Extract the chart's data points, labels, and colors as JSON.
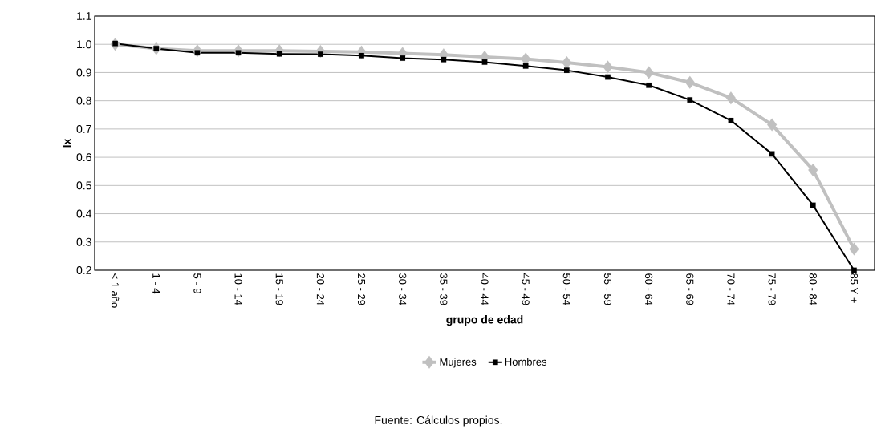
{
  "chart_data": {
    "type": "line",
    "xlabel": "grupo de edad",
    "ylabel": "lx",
    "annotations": [
      "Fuente: Cálculos propios."
    ],
    "categories": [
      "< 1 año",
      "1 - 4",
      "5 - 9",
      "10 - 14",
      "15 - 19",
      "20 - 24",
      "25 - 29",
      "30 - 34",
      "35 - 39",
      "40 - 44",
      "45 - 49",
      "50 - 54",
      "55 - 59",
      "60 - 64",
      "65 - 69",
      "70 - 74",
      "75 - 79",
      "80 - 84",
      "85 Y +"
    ],
    "series": [
      {
        "name": "Mujeres",
        "color": "#c0c0c0",
        "marker": "diamond",
        "values": [
          1.0,
          0.985,
          0.977,
          0.977,
          0.977,
          0.975,
          0.973,
          0.968,
          0.963,
          0.955,
          0.948,
          0.935,
          0.92,
          0.9,
          0.865,
          0.81,
          0.715,
          0.555,
          0.275
        ]
      },
      {
        "name": "Hombres",
        "color": "#000000",
        "marker": "square",
        "values": [
          1.003,
          0.985,
          0.97,
          0.97,
          0.966,
          0.965,
          0.96,
          0.951,
          0.946,
          0.937,
          0.923,
          0.908,
          0.884,
          0.855,
          0.803,
          0.73,
          0.612,
          0.43,
          0.2
        ]
      }
    ],
    "ylim": [
      0.2,
      1.1
    ],
    "yticks": [
      {
        "value": 0.2,
        "label": "0.2"
      },
      {
        "value": 0.3,
        "label": "0.3"
      },
      {
        "value": 0.4,
        "label": "0.4"
      },
      {
        "value": 0.5,
        "label": "0.5"
      },
      {
        "value": 0.6,
        "label": "0.6"
      },
      {
        "value": 0.7,
        "label": "0.7"
      },
      {
        "value": 0.8,
        "label": "0.8"
      },
      {
        "value": 0.9,
        "label": "0.9"
      },
      {
        "value": 1.0,
        "label": "1.0"
      },
      {
        "value": 1.1,
        "label": "1.1"
      }
    ],
    "grid": "y",
    "legend": "bottom",
    "line_style": "solid"
  }
}
